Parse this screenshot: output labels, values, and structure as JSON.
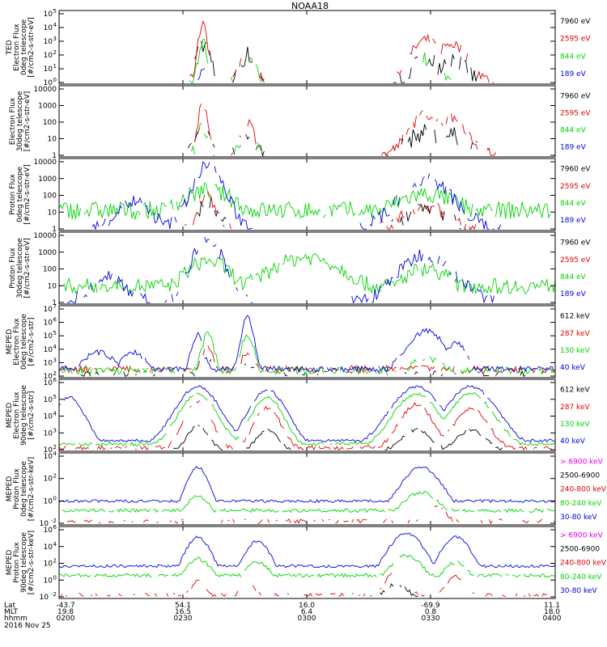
{
  "title": "NOAA18",
  "colors": {
    "black": "#000000",
    "red": "#e00000",
    "green": "#00d400",
    "blue": "#0000e0",
    "magenta": "#e000e0"
  },
  "panels": [
    {
      "ylabel": [
        "TED",
        "Electron Flux",
        "0deg telescope",
        "[#/cm2-s-str-eV]"
      ],
      "ticks": [
        {
          "text": "10",
          "exp": "0"
        },
        {
          "text": "10",
          "exp": "1"
        },
        {
          "text": "10",
          "exp": "2"
        },
        {
          "text": "10",
          "exp": "3"
        },
        {
          "text": "10",
          "exp": "4"
        },
        {
          "text": "10",
          "exp": "5"
        }
      ],
      "legend": [
        {
          "text": "7960 eV",
          "color": "black"
        },
        {
          "text": "2595 eV",
          "color": "red"
        },
        {
          "text": "844 eV",
          "color": "green"
        },
        {
          "text": "189 eV",
          "color": "blue"
        }
      ]
    },
    {
      "ylabel": [
        "Electron Flux",
        "30deg telescope",
        "[#/cm2-s-str-eV]"
      ],
      "ticks": [
        {
          "text": "1"
        },
        {
          "text": "10"
        },
        {
          "text": "100"
        },
        {
          "text": "1000"
        },
        {
          "text": "10000"
        }
      ],
      "legend": [
        {
          "text": "7960 eV",
          "color": "black"
        },
        {
          "text": "2595 eV",
          "color": "red"
        },
        {
          "text": "844 eV",
          "color": "green"
        },
        {
          "text": "189 eV",
          "color": "blue"
        }
      ]
    },
    {
      "ylabel": [
        "Proton Flux",
        "0deg telescope",
        "[#/cm2-s-str-eV]"
      ],
      "ticks": [
        {
          "text": "1"
        },
        {
          "text": "10"
        },
        {
          "text": "100"
        },
        {
          "text": "1000"
        },
        {
          "text": "10000"
        }
      ],
      "legend": [
        {
          "text": "7960 eV",
          "color": "black"
        },
        {
          "text": "2595 eV",
          "color": "red"
        },
        {
          "text": "844 eV",
          "color": "green"
        },
        {
          "text": "189 eV",
          "color": "blue"
        }
      ]
    },
    {
      "ylabel": [
        "Proton Flux",
        "30deg telescope",
        "[#/cm2-s-str-eV]"
      ],
      "ticks": [
        {
          "text": "1"
        },
        {
          "text": "10"
        },
        {
          "text": "100"
        },
        {
          "text": "1000"
        },
        {
          "text": "10000"
        }
      ],
      "legend": [
        {
          "text": "7960 eV",
          "color": "black"
        },
        {
          "text": "2595 eV",
          "color": "red"
        },
        {
          "text": "844 eV",
          "color": "green"
        },
        {
          "text": "189 eV",
          "color": "blue"
        }
      ]
    },
    {
      "ylabel": [
        "MEPED",
        "Electron Flux",
        "0deg telescope",
        "[#/cm2-s-str]"
      ],
      "ticks": [
        {
          "text": "10",
          "exp": "2"
        },
        {
          "text": "10",
          "exp": "3"
        },
        {
          "text": "10",
          "exp": "4"
        },
        {
          "text": "10",
          "exp": "5"
        },
        {
          "text": "10",
          "exp": "6"
        },
        {
          "text": "10",
          "exp": "7"
        }
      ],
      "legend": [
        {
          "text": "612 keV",
          "color": "black"
        },
        {
          "text": "287 keV",
          "color": "red"
        },
        {
          "text": "130 keV",
          "color": "green"
        },
        {
          "text": "40 keV",
          "color": "blue"
        }
      ]
    },
    {
      "ylabel": [
        "MEPED",
        "Electron Flux",
        "90deg telescope",
        "[#/cm2-s-str]"
      ],
      "ticks": [
        {
          "text": "10",
          "exp": "2"
        },
        {
          "text": "10",
          "exp": "3"
        },
        {
          "text": "10",
          "exp": "4"
        },
        {
          "text": "10",
          "exp": "5"
        },
        {
          "text": "10",
          "exp": "6"
        }
      ],
      "legend": [
        {
          "text": "612 keV",
          "color": "black"
        },
        {
          "text": "287 keV",
          "color": "red"
        },
        {
          "text": "130 keV",
          "color": "green"
        },
        {
          "text": "40 keV",
          "color": "blue"
        }
      ]
    },
    {
      "ylabel": [
        "MEPED",
        "Proton Flux",
        "0deg telescope",
        "[#/cm2-s-str-keV]"
      ],
      "ticks": [
        {
          "text": "10",
          "exp": "-2"
        },
        {
          "text": "10",
          "exp": "0"
        },
        {
          "text": "10",
          "exp": "2"
        },
        {
          "text": "10",
          "exp": "4"
        }
      ],
      "legend": [
        {
          "text": "> 6900 keV",
          "color": "magenta"
        },
        {
          "text": "2500-6900",
          "color": "black"
        },
        {
          "text": "240-800 keV",
          "color": "red"
        },
        {
          "text": "80-240 keV",
          "color": "green"
        },
        {
          "text": "30-80 keV",
          "color": "blue"
        }
      ]
    },
    {
      "ylabel": [
        "MEPED",
        "Proton Flux",
        "90deg telescope",
        "[#/cm2-s-str-keV]"
      ],
      "ticks": [
        {
          "text": "10",
          "exp": "-2"
        },
        {
          "text": "10",
          "exp": "0"
        },
        {
          "text": "10",
          "exp": "2"
        },
        {
          "text": "10",
          "exp": "4"
        },
        {
          "text": "10",
          "exp": "6"
        }
      ],
      "legend": [
        {
          "text": "> 6900 keV",
          "color": "magenta"
        },
        {
          "text": "2500-6900",
          "color": "black"
        },
        {
          "text": "240-800 keV",
          "color": "red"
        },
        {
          "text": "80-240 keV",
          "color": "green"
        },
        {
          "text": "30-80 keV",
          "color": "blue"
        }
      ]
    }
  ],
  "xaxis": {
    "row_labels": [
      "Lat",
      "MLT",
      "hhmm"
    ],
    "date": "2016 Nov 25",
    "ticks": [
      {
        "lat": "-43.7",
        "mlt": "19.8",
        "hhmm": "0200"
      },
      {
        "lat": "54.1",
        "mlt": "16.5",
        "hhmm": "0230"
      },
      {
        "lat": "16.0",
        "mlt": "6.4",
        "hhmm": "0300"
      },
      {
        "lat": "-69.9",
        "mlt": "0.8",
        "hhmm": "0330"
      },
      {
        "lat": "11.1",
        "mlt": "18.0",
        "hhmm": "0400"
      }
    ]
  },
  "chart_data": {
    "type": "line",
    "title": "NOAA18",
    "x_ticks": [
      "0200",
      "0230",
      "0300",
      "0330",
      "0400"
    ],
    "panel_count": 8,
    "series_by_panel": [
      [
        "7960 eV",
        "2595 eV",
        "844 eV",
        "189 eV"
      ],
      [
        "7960 eV",
        "2595 eV",
        "844 eV",
        "189 eV"
      ],
      [
        "7960 eV",
        "2595 eV",
        "844 eV",
        "189 eV"
      ],
      [
        "7960 eV",
        "2595 eV",
        "844 eV",
        "189 eV"
      ],
      [
        "612 keV",
        "287 keV",
        "130 keV",
        "40 keV"
      ],
      [
        "612 keV",
        "287 keV",
        "130 keV",
        "40 keV"
      ],
      [
        "> 6900 keV",
        "2500-6900",
        "240-800 keV",
        "80-240 keV",
        "30-80 keV"
      ],
      [
        "> 6900 keV",
        "2500-6900",
        "240-800 keV",
        "80-240 keV",
        "30-80 keV"
      ]
    ]
  }
}
